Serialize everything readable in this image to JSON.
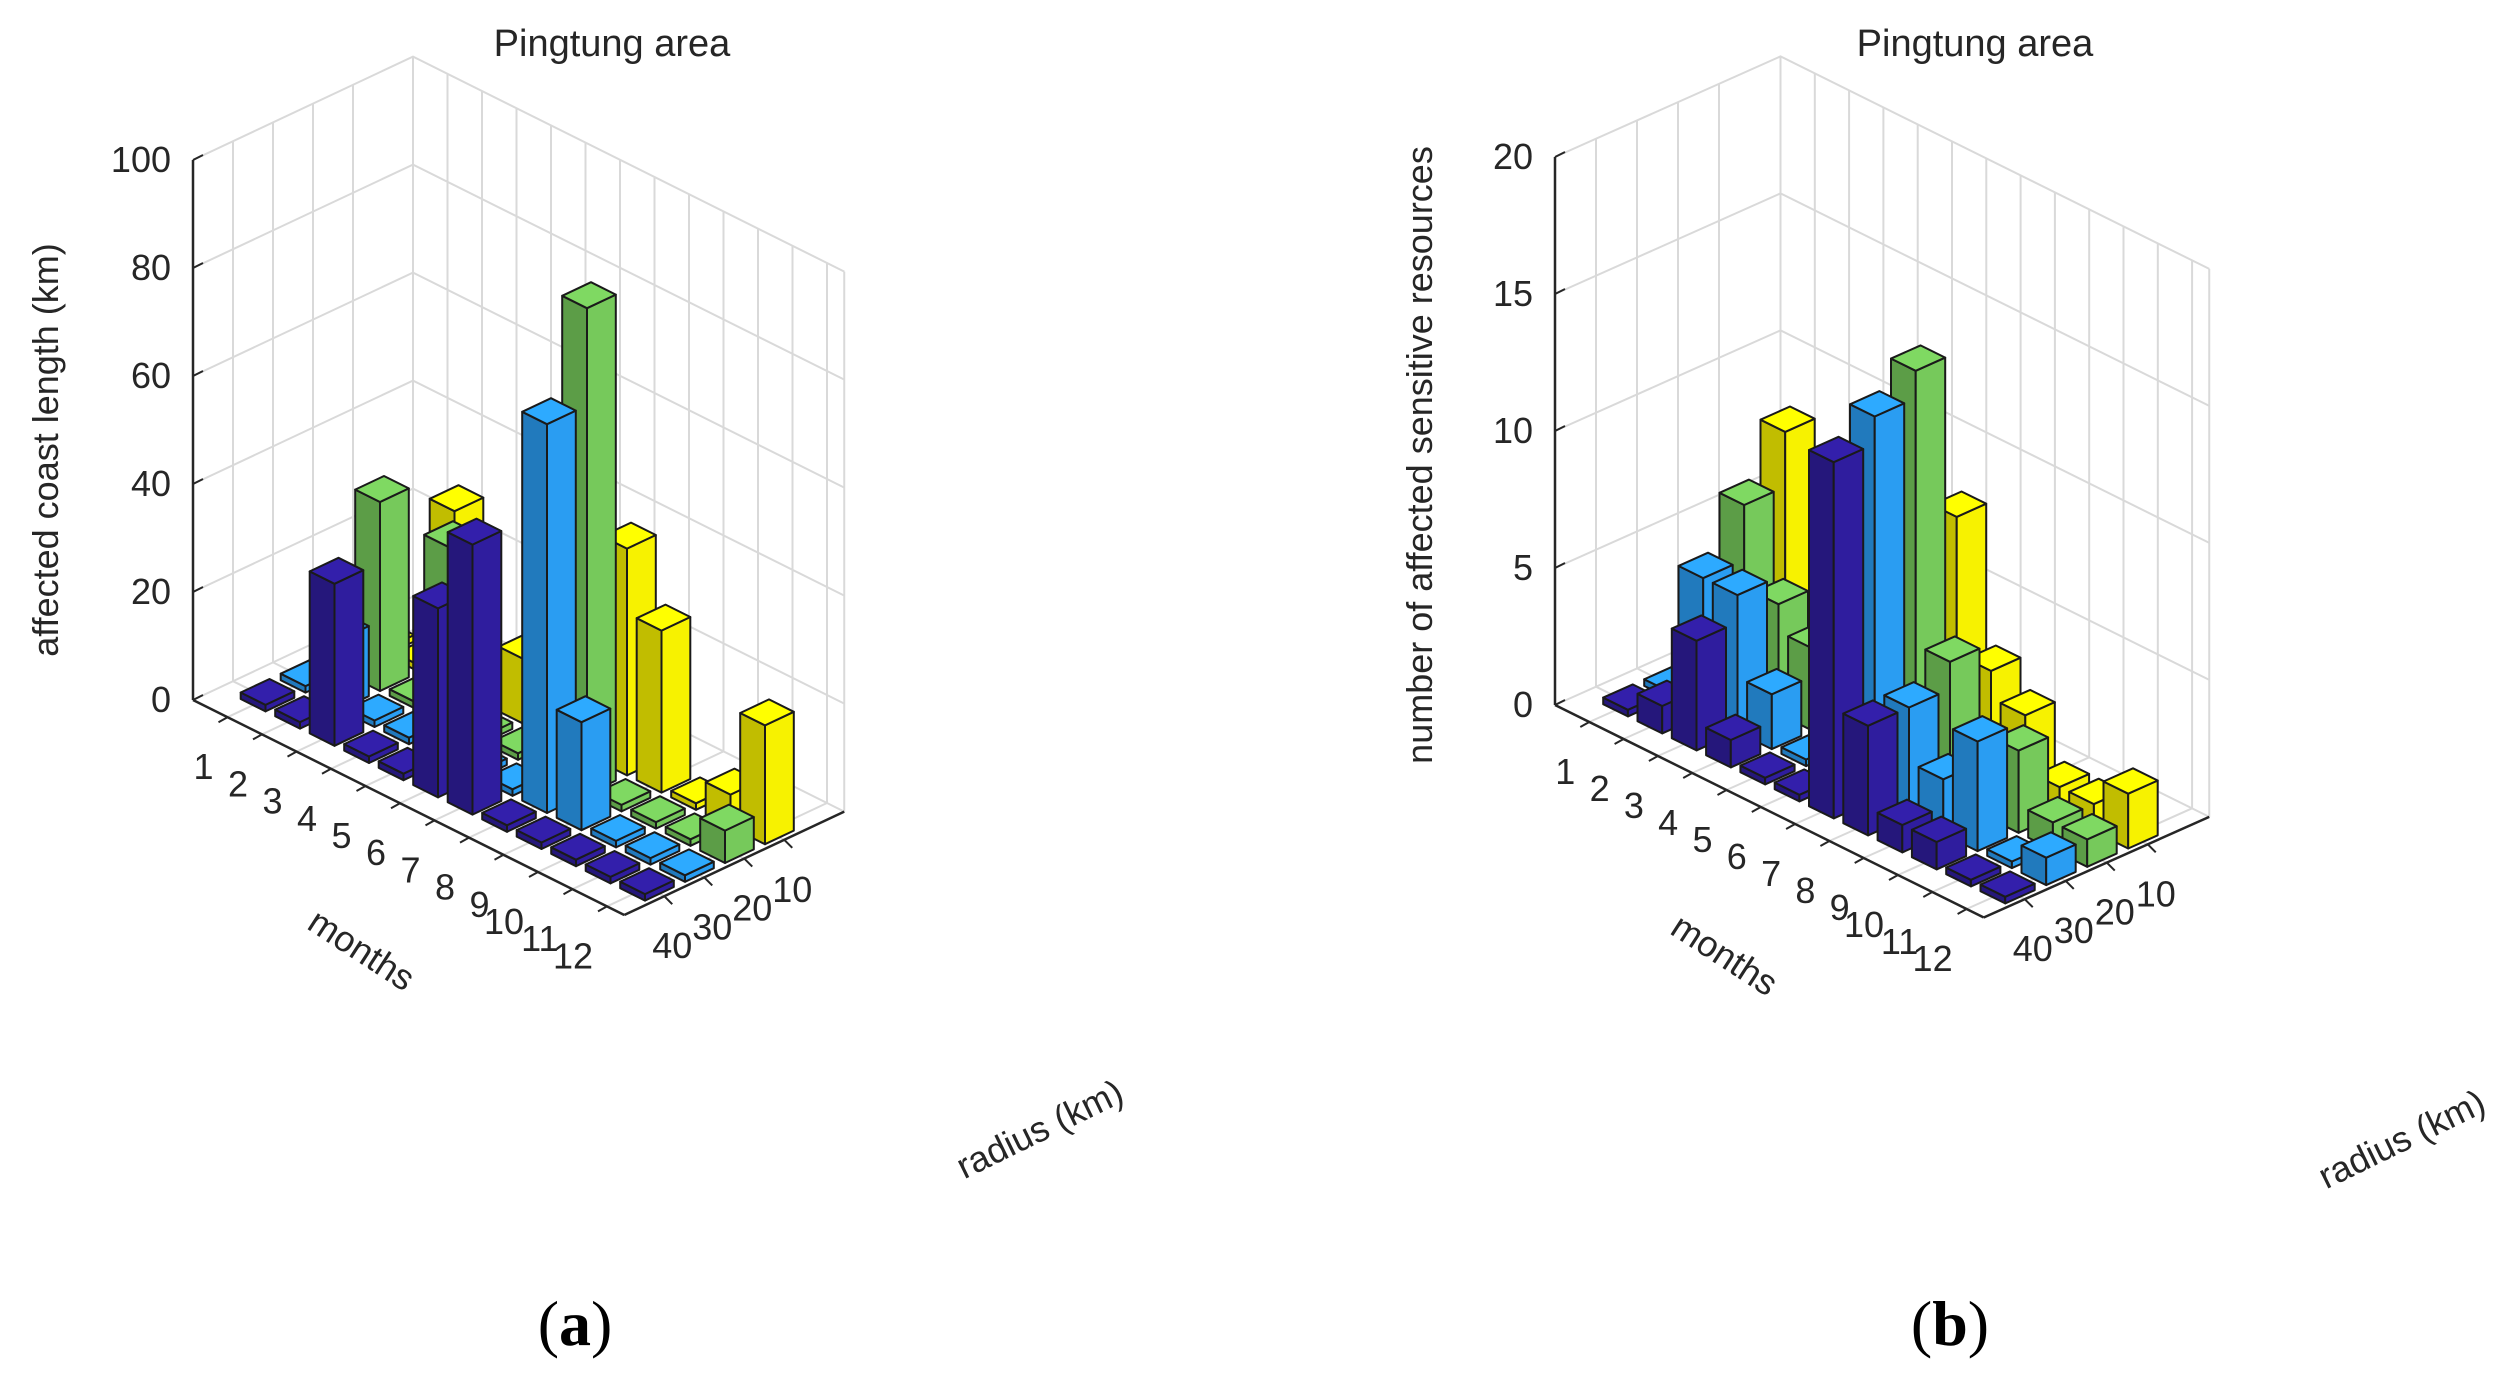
{
  "colors": {
    "r40": "#2f1d9e",
    "r30": "#2a9df2",
    "r20": "#76c95b",
    "r10": "#f7f200",
    "grid": "#d9d9d9",
    "axis": "#262626",
    "edge": "#1a1a1a"
  },
  "captions": [
    "a",
    "b"
  ],
  "chart_data": [
    {
      "type": "bar3d",
      "title": "Pingtung area",
      "zlabel": "affected coast length (km)",
      "xlabel": "months",
      "ylabel": "radius (km)",
      "months": [
        "1",
        "2",
        "3",
        "4",
        "5",
        "6",
        "7",
        "8",
        "9",
        "10",
        "11",
        "12"
      ],
      "radius_ticks": [
        "40",
        "30",
        "20",
        "10"
      ],
      "zticks": [
        "0",
        "20",
        "40",
        "60",
        "80",
        "100"
      ],
      "zlim": [
        0,
        100
      ],
      "series": [
        {
          "name": "40",
          "values": [
            0,
            0,
            30,
            0,
            0,
            35,
            50,
            0,
            0,
            0,
            0,
            0
          ]
        },
        {
          "name": "30",
          "values": [
            0,
            13,
            0,
            0,
            0,
            0,
            0,
            72,
            20,
            0,
            0,
            0
          ]
        },
        {
          "name": "20",
          "values": [
            0,
            35,
            0,
            33,
            0,
            0,
            50,
            90,
            0,
            0,
            0,
            6
          ]
        },
        {
          "name": "10",
          "values": [
            0,
            0,
            33,
            0,
            12,
            0,
            0,
            42,
            30,
            0,
            6,
            22
          ]
        }
      ]
    },
    {
      "type": "bar3d",
      "title": "Pingtung area",
      "zlabel": "number of affected sensitive resources",
      "xlabel": "months",
      "ylabel": "radius (km)",
      "months": [
        "1",
        "2",
        "3",
        "4",
        "5",
        "6",
        "7",
        "8",
        "9",
        "10",
        "11",
        "12"
      ],
      "radius_ticks": [
        "40",
        "30",
        "20",
        "10"
      ],
      "zticks": [
        "0",
        "5",
        "10",
        "15",
        "20"
      ],
      "zlim": [
        0,
        20
      ],
      "series": [
        {
          "name": "40",
          "values": [
            0,
            1,
            4,
            1,
            0,
            0,
            13,
            4,
            1,
            1,
            0,
            0
          ]
        },
        {
          "name": "30",
          "values": [
            0,
            5,
            5,
            2,
            0,
            0,
            14,
            4,
            2,
            4,
            0,
            1
          ]
        },
        {
          "name": "20",
          "values": [
            0,
            7,
            4,
            3,
            0,
            0,
            15,
            5,
            1,
            3,
            1,
            1
          ]
        },
        {
          "name": "10",
          "values": [
            0,
            9,
            3,
            2,
            0,
            0,
            9,
            4,
            3,
            1,
            1,
            2
          ]
        }
      ]
    }
  ]
}
